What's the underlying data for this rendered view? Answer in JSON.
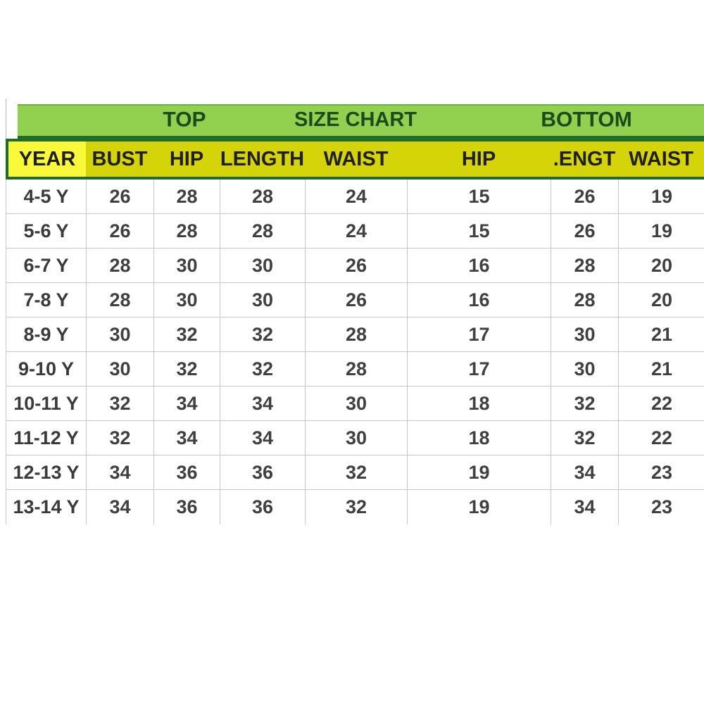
{
  "colors": {
    "green_fill": "#92d050",
    "green_border": "#226b2f",
    "green_text": "#1d4a1d",
    "yellow_bright": "#f9f93a",
    "yellow_olive": "#d4d408",
    "header_text": "#1f1f1f",
    "data_text": "#404040",
    "gridline": "#c6c6c6",
    "background": "#ffffff"
  },
  "size_chart": {
    "group_headers": {
      "top": "TOP",
      "title": "SIZE CHART",
      "bottom": "BOTTOM"
    },
    "columns": [
      "YEAR",
      "BUST",
      "HIP",
      "LENGTH",
      "WAIST",
      "HIP",
      ".ENGT",
      "WAIST"
    ],
    "rows": [
      {
        "year": "4-5 Y",
        "values": [
          "26",
          "28",
          "28",
          "24",
          "15",
          "26",
          "19"
        ]
      },
      {
        "year": "5-6 Y",
        "values": [
          "26",
          "28",
          "28",
          "24",
          "15",
          "26",
          "19"
        ]
      },
      {
        "year": "6-7 Y",
        "values": [
          "28",
          "30",
          "30",
          "26",
          "16",
          "28",
          "20"
        ]
      },
      {
        "year": "7-8 Y",
        "values": [
          "28",
          "30",
          "30",
          "26",
          "16",
          "28",
          "20"
        ]
      },
      {
        "year": "8-9 Y",
        "values": [
          "30",
          "32",
          "32",
          "28",
          "17",
          "30",
          "21"
        ]
      },
      {
        "year": "9-10 Y",
        "values": [
          "30",
          "32",
          "32",
          "28",
          "17",
          "30",
          "21"
        ]
      },
      {
        "year": "10-11 Y",
        "values": [
          "32",
          "34",
          "34",
          "30",
          "18",
          "32",
          "22"
        ]
      },
      {
        "year": "11-12 Y",
        "values": [
          "32",
          "34",
          "34",
          "30",
          "18",
          "32",
          "22"
        ]
      },
      {
        "year": "12-13 Y",
        "values": [
          "34",
          "36",
          "36",
          "32",
          "19",
          "34",
          "23"
        ]
      },
      {
        "year": "13-14 Y",
        "values": [
          "34",
          "36",
          "36",
          "32",
          "19",
          "34",
          "23"
        ]
      }
    ]
  }
}
